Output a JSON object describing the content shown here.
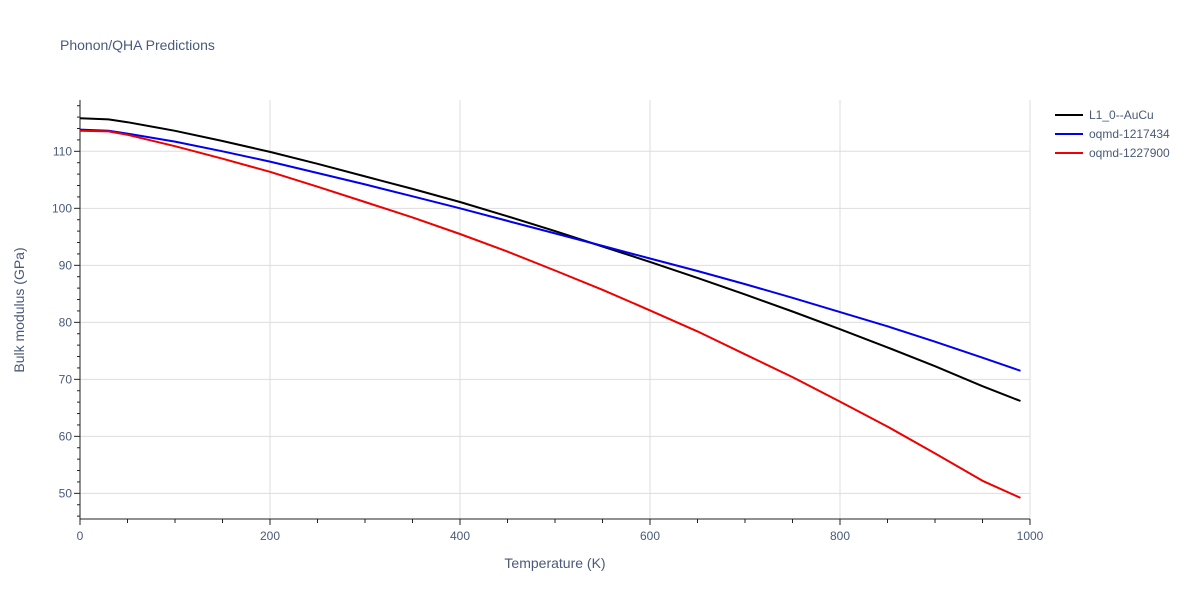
{
  "chart_data": {
    "type": "line",
    "title": "Phonon/QHA Predictions",
    "xlabel": "Temperature (K)",
    "ylabel": "Bulk modulus (GPa)",
    "xlim": [
      0,
      1000
    ],
    "ylim": [
      45.5,
      119
    ],
    "x_ticks": [
      0,
      200,
      400,
      600,
      800,
      1000
    ],
    "y_ticks": [
      50,
      60,
      70,
      80,
      90,
      100,
      110
    ],
    "grid": true,
    "legend_position": "top-right",
    "series": [
      {
        "name": "L1_0--AuCu",
        "color": "#000000",
        "x": [
          0,
          30,
          50,
          100,
          150,
          200,
          250,
          300,
          350,
          400,
          450,
          500,
          550,
          600,
          650,
          700,
          750,
          800,
          850,
          900,
          950,
          990
        ],
        "y": [
          115.8,
          115.6,
          115.1,
          113.6,
          111.8,
          109.9,
          107.8,
          105.6,
          103.4,
          101.1,
          98.6,
          96.0,
          93.3,
          90.6,
          87.8,
          84.9,
          81.9,
          78.8,
          75.6,
          72.3,
          68.8,
          66.2
        ]
      },
      {
        "name": "oqmd-1217434",
        "color": "#0000ee",
        "x": [
          0,
          30,
          50,
          100,
          150,
          200,
          250,
          300,
          350,
          400,
          450,
          500,
          550,
          600,
          650,
          700,
          750,
          800,
          850,
          900,
          950,
          990
        ],
        "y": [
          113.8,
          113.6,
          113.1,
          111.7,
          110.0,
          108.2,
          106.2,
          104.2,
          102.1,
          100.0,
          97.8,
          95.6,
          93.4,
          91.2,
          89.0,
          86.7,
          84.3,
          81.8,
          79.3,
          76.6,
          73.8,
          71.5
        ]
      },
      {
        "name": "oqmd-1227900",
        "color": "#ee0000",
        "x": [
          0,
          30,
          50,
          100,
          150,
          200,
          250,
          300,
          350,
          400,
          450,
          500,
          550,
          600,
          650,
          700,
          750,
          800,
          850,
          900,
          950,
          990
        ],
        "y": [
          113.6,
          113.5,
          112.9,
          110.9,
          108.7,
          106.4,
          103.8,
          101.1,
          98.4,
          95.5,
          92.4,
          89.1,
          85.7,
          82.1,
          78.4,
          74.4,
          70.4,
          66.1,
          61.7,
          57.0,
          52.2,
          49.2
        ]
      }
    ]
  }
}
